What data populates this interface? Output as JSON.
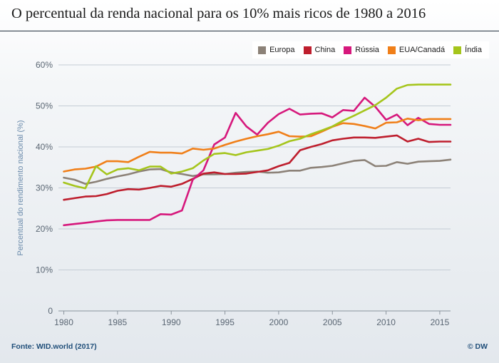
{
  "chart_data": {
    "type": "line",
    "title": "O percentual da renda nacional para os 10% mais ricos de 1980 a 2016",
    "ylabel": "Percentual do rendimento nacional (%)",
    "xlabel": "",
    "ylim": [
      0,
      60
    ],
    "xlim": [
      1979.5,
      2016
    ],
    "yticks": [
      0,
      10,
      20,
      30,
      40,
      50,
      60
    ],
    "ytick_labels": [
      "0",
      "10%",
      "20%",
      "30%",
      "40%",
      "50%",
      "60%"
    ],
    "xticks": [
      1980,
      1985,
      1990,
      1995,
      2000,
      2005,
      2010,
      2015
    ],
    "xtick_labels": [
      "1980",
      "1985",
      "1990",
      "1995",
      "2000",
      "2005",
      "2010",
      "2015"
    ],
    "grid": "horizontal",
    "legend_position": "top-right",
    "x": [
      1980,
      1981,
      1982,
      1983,
      1984,
      1985,
      1986,
      1987,
      1988,
      1989,
      1990,
      1991,
      1992,
      1993,
      1994,
      1995,
      1996,
      1997,
      1998,
      1999,
      2000,
      2001,
      2002,
      2003,
      2004,
      2005,
      2006,
      2007,
      2008,
      2009,
      2010,
      2011,
      2012,
      2013,
      2014,
      2015,
      2016
    ],
    "series": [
      {
        "name": "Europa",
        "color": "#8c8278",
        "values": [
          32.5,
          32.0,
          31.0,
          31.5,
          32.2,
          32.8,
          33.3,
          34.0,
          34.5,
          34.6,
          33.8,
          33.4,
          32.9,
          33.3,
          33.3,
          33.4,
          33.7,
          33.9,
          34.0,
          33.7,
          33.8,
          34.2,
          34.2,
          34.9,
          35.1,
          35.4,
          36.0,
          36.6,
          36.8,
          35.3,
          35.4,
          36.3,
          35.9,
          36.4,
          36.5,
          36.6,
          36.9
        ]
      },
      {
        "name": "China",
        "color": "#be1e2d",
        "values": [
          27.1,
          27.5,
          27.9,
          28.0,
          28.5,
          29.3,
          29.7,
          29.6,
          30.0,
          30.5,
          30.3,
          31.0,
          32.2,
          33.5,
          33.8,
          33.4,
          33.4,
          33.5,
          33.9,
          34.3,
          35.3,
          36.1,
          39.2,
          40.0,
          40.7,
          41.6,
          42.0,
          42.3,
          42.3,
          42.2,
          42.5,
          42.8,
          41.3,
          42.0,
          41.2,
          41.3,
          41.3
        ]
      },
      {
        "name": "Rússia",
        "color": "#d6187c",
        "values": [
          20.9,
          21.2,
          21.5,
          21.8,
          22.1,
          22.2,
          22.2,
          22.2,
          22.2,
          23.6,
          23.5,
          24.5,
          32.0,
          34.3,
          40.6,
          42.3,
          48.3,
          45.0,
          43.0,
          45.9,
          48.0,
          49.3,
          47.9,
          48.1,
          48.2,
          47.2,
          49.0,
          48.8,
          52.0,
          49.8,
          46.6,
          47.9,
          45.3,
          47.1,
          45.6,
          45.4,
          45.4
        ]
      },
      {
        "name": "EUA/Canadá",
        "color": "#f07f19",
        "values": [
          34.0,
          34.5,
          34.7,
          35.2,
          36.5,
          36.5,
          36.3,
          37.6,
          38.8,
          38.6,
          38.6,
          38.4,
          39.6,
          39.3,
          39.6,
          40.5,
          41.3,
          42.0,
          42.6,
          43.1,
          43.7,
          42.6,
          42.5,
          42.6,
          43.7,
          44.9,
          45.8,
          45.6,
          45.1,
          44.5,
          45.9,
          46.0,
          46.9,
          46.5,
          46.8,
          46.8,
          46.8
        ]
      },
      {
        "name": "Índia",
        "color": "#a5c51c",
        "values": [
          31.3,
          30.5,
          29.9,
          35.3,
          33.3,
          34.5,
          34.8,
          34.3,
          35.2,
          35.2,
          33.5,
          34.0,
          34.8,
          36.7,
          38.3,
          38.5,
          38.0,
          38.7,
          39.1,
          39.5,
          40.3,
          41.4,
          42.0,
          43.1,
          44.0,
          45.0,
          46.4,
          47.6,
          48.9,
          50.2,
          52.0,
          54.2,
          55.1,
          55.2,
          55.2,
          55.2,
          55.2
        ]
      }
    ]
  },
  "source_label": "Fonte: WID.world (2017)",
  "brand_label": "© DW",
  "colors": {
    "grid": "#c4ccd5",
    "axis": "#8a939c",
    "tick": "#5a6673",
    "ylabel": "#6b8bab"
  }
}
